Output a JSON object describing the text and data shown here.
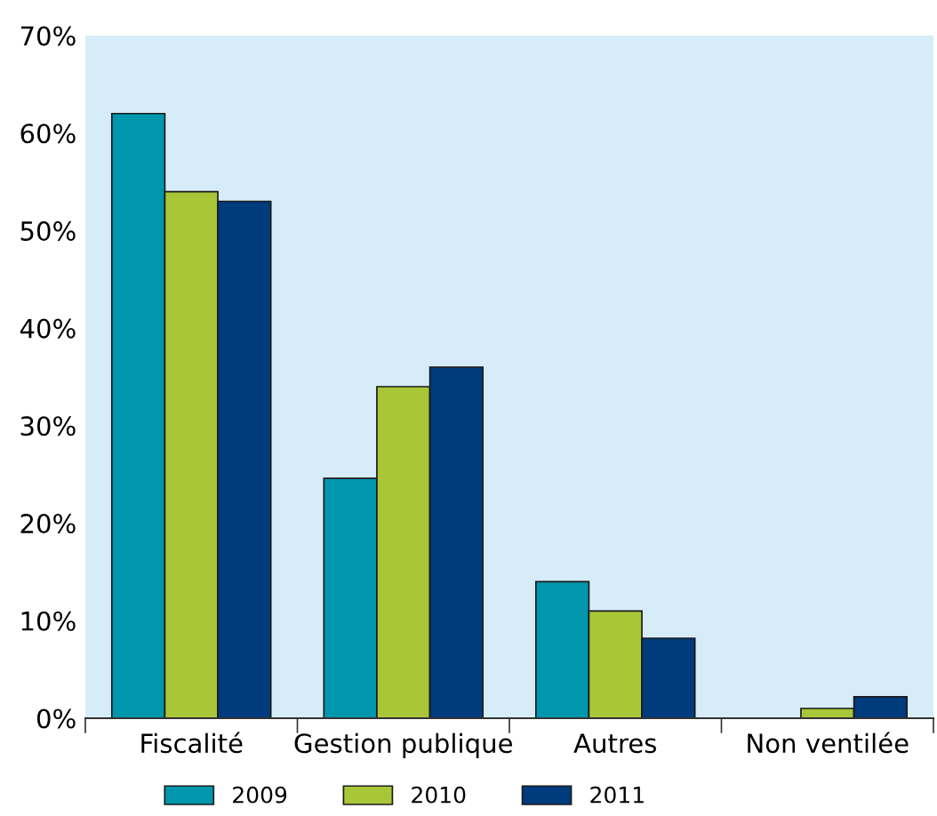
{
  "chart_data": {
    "type": "bar",
    "categories": [
      "Fiscalité",
      "Gestion publique",
      "Autres",
      "Non ventilée"
    ],
    "series": [
      {
        "name": "2009",
        "color": "#0097ae",
        "values": [
          62,
          24.6,
          14,
          null
        ]
      },
      {
        "name": "2010",
        "color": "#a9c638",
        "values": [
          54,
          34,
          11,
          1
        ]
      },
      {
        "name": "2011",
        "color": "#003b7d",
        "values": [
          53,
          36,
          8.2,
          2.2
        ]
      }
    ],
    "ylim": [
      0,
      70
    ],
    "yticks": [
      {
        "value": 0,
        "label": "0%"
      },
      {
        "value": 10,
        "label": "10%"
      },
      {
        "value": 20,
        "label": "20%"
      },
      {
        "value": 30,
        "label": "30%"
      },
      {
        "value": 40,
        "label": "40%"
      },
      {
        "value": 50,
        "label": "50%"
      },
      {
        "value": 60,
        "label": "60%"
      },
      {
        "value": 70,
        "label": "70%"
      }
    ],
    "grid": false,
    "legend": "bottom left"
  }
}
